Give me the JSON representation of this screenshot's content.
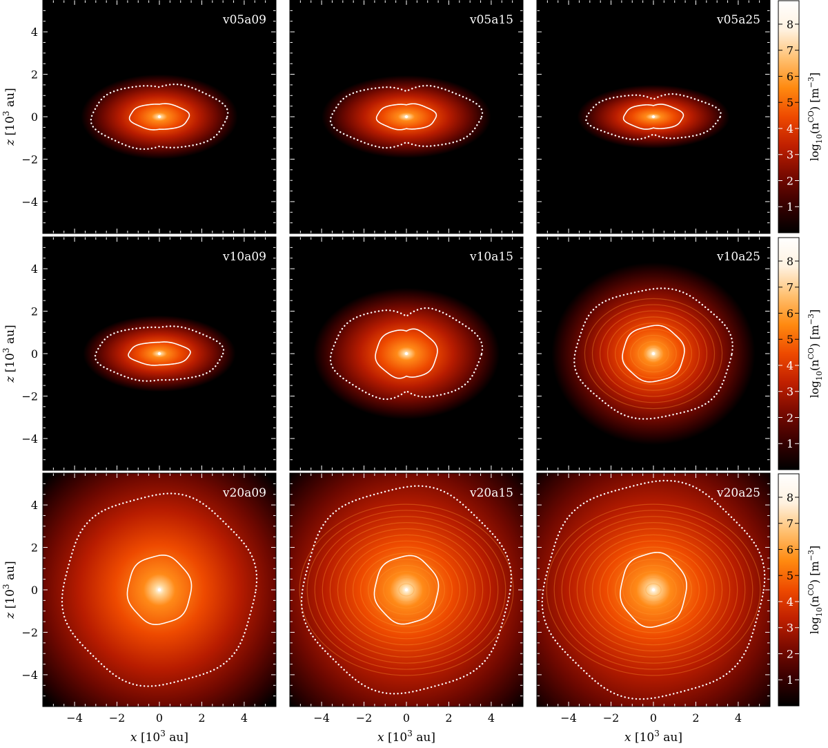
{
  "chart_data": {
    "type": "heatmap",
    "description_units": "x and z in 10^3 au; color = log10(n^CO) in m^-3",
    "xlabel_main": "x",
    "xlabel_unit": "[10",
    "xlabel_exp": "3",
    "xlabel_tail": " au]",
    "ylabel_main": "z",
    "ylabel_unit": "[10",
    "ylabel_exp": "3",
    "ylabel_tail": " au]",
    "xlim": [
      -5.5,
      5.5
    ],
    "ylim": [
      -5.5,
      5.5
    ],
    "x_ticks": [
      -4,
      -2,
      0,
      2,
      4
    ],
    "y_ticks": [
      -4,
      -2,
      0,
      2,
      4
    ],
    "x_tick_labels": [
      "−4",
      "−2",
      "0",
      "2",
      "4"
    ],
    "y_tick_labels": [
      "−4",
      "−2",
      "0",
      "2",
      "4"
    ],
    "colorbar": {
      "label_pre": "log",
      "label_sub": "10",
      "label_mid": "(n",
      "label_sup": "CO",
      "label_post": ") [m",
      "label_sup2": "−3",
      "label_end": "]",
      "range": [
        0,
        8.9
      ],
      "ticks": [
        1,
        2,
        3,
        4,
        5,
        6,
        7,
        8
      ],
      "tick_labels": [
        "1",
        "2",
        "3",
        "4",
        "5",
        "6",
        "7",
        "8"
      ],
      "colors": [
        "#000000",
        "#3a0000",
        "#7a0a00",
        "#c02000",
        "#ee4a00",
        "#ff8a10",
        "#ffc070",
        "#fff2e0",
        "#ffffff"
      ]
    },
    "panels": [
      {
        "name": "v05a09",
        "solid": {
          "rx": 1.4,
          "rz": 0.62
        },
        "dotted": {
          "rx": 3.2,
          "rz": 1.55
        },
        "glow": {
          "rx": 3.7,
          "rz": 2.0
        },
        "rings": false,
        "pinch": 0.1
      },
      {
        "name": "v05a15",
        "solid": {
          "rx": 1.4,
          "rz": 0.62
        },
        "dotted": {
          "rx": 3.55,
          "rz": 1.5
        },
        "glow": {
          "rx": 4.0,
          "rz": 1.95
        },
        "rings": false,
        "pinch": 0.2
      },
      {
        "name": "v05a25",
        "solid": {
          "rx": 1.4,
          "rz": 0.6
        },
        "dotted": {
          "rx": 3.15,
          "rz": 1.1
        },
        "glow": {
          "rx": 3.6,
          "rz": 1.5
        },
        "rings": false,
        "pinch": 0.25
      },
      {
        "name": "v10a09",
        "solid": {
          "rx": 1.45,
          "rz": 0.55
        },
        "dotted": {
          "rx": 3.0,
          "rz": 1.3
        },
        "glow": {
          "rx": 3.6,
          "rz": 1.8
        },
        "rings": false,
        "pinch": 0.05
      },
      {
        "name": "v10a15",
        "solid": {
          "rx": 1.45,
          "rz": 1.18
        },
        "dotted": {
          "rx": 3.55,
          "rz": 2.2
        },
        "glow": {
          "rx": 4.4,
          "rz": 3.1
        },
        "rings": false,
        "pinch": 0.2
      },
      {
        "name": "v10a25",
        "solid": {
          "rx": 1.45,
          "rz": 1.32
        },
        "dotted": {
          "rx": 3.7,
          "rz": 3.05
        },
        "glow": {
          "rx": 4.8,
          "rz": 4.3
        },
        "rings": true,
        "pinch": 0.0
      },
      {
        "name": "v20a09",
        "solid": {
          "rx": 1.5,
          "rz": 1.62
        },
        "dotted": {
          "rx": 4.55,
          "rz": 4.5
        },
        "glow": {
          "rx": 7.5,
          "rz": 7.5
        },
        "rings": false,
        "pinch": 0.0
      },
      {
        "name": "v20a15",
        "solid": {
          "rx": 1.5,
          "rz": 1.6
        },
        "dotted": {
          "rx": 4.9,
          "rz": 4.85
        },
        "glow": {
          "rx": 7.8,
          "rz": 7.8
        },
        "rings": true,
        "pinch": 0.0
      },
      {
        "name": "v20a25",
        "solid": {
          "rx": 1.55,
          "rz": 1.75
        },
        "dotted": {
          "rx": 5.2,
          "rz": 5.1
        },
        "glow": {
          "rx": 8.0,
          "rz": 8.0
        },
        "rings": true,
        "pinch": 0.0
      }
    ]
  }
}
